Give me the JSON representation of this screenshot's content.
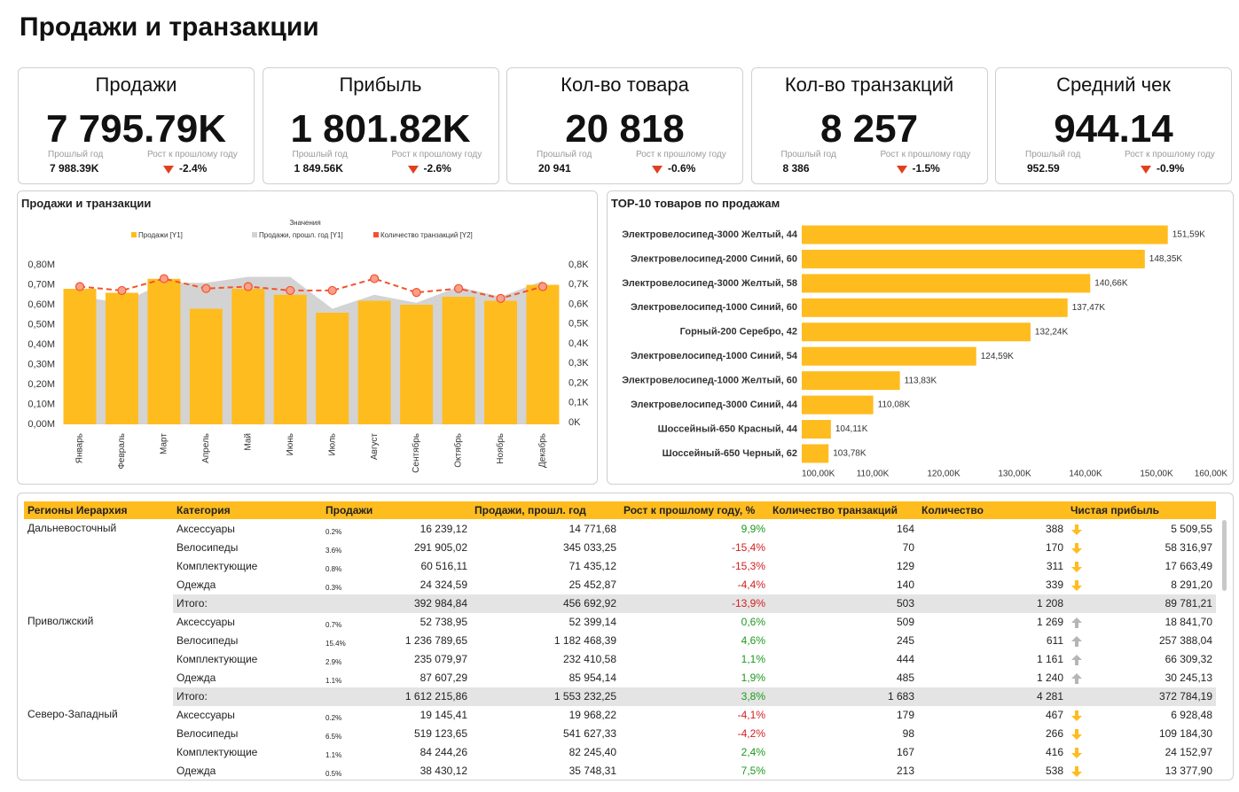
{
  "title": "Продажи и транзакции",
  "kpi_labels": {
    "prev": "Прошлый год",
    "growth": "Рост к прошлому году"
  },
  "kpis": [
    {
      "title": "Продажи",
      "value": "7 795.79K",
      "prev": "7 988.39K",
      "growth": "-2.4%"
    },
    {
      "title": "Прибыль",
      "value": "1 801.82K",
      "prev": "1 849.56K",
      "growth": "-2.6%"
    },
    {
      "title": "Кол-во товара",
      "value": "20 818",
      "prev": "20 941",
      "growth": "-0.6%"
    },
    {
      "title": "Кол-во транзакций",
      "value": "8 257",
      "prev": "8 386",
      "growth": "-1.5%"
    },
    {
      "title": "Средний чек",
      "value": "944.14",
      "prev": "952.59",
      "growth": "-0.9%"
    }
  ],
  "chart_data": [
    {
      "type": "combo",
      "title": "Продажи и транзакции",
      "legend_title": "Значения",
      "categories": [
        "Январь",
        "Февраль",
        "Март",
        "Апрель",
        "Май",
        "Июнь",
        "Июль",
        "Август",
        "Сентябрь",
        "Октябрь",
        "Ноябрь",
        "Декабрь"
      ],
      "series": [
        {
          "name": "Продажи [Y1]",
          "type": "bar",
          "color": "#FFBC1F",
          "values": [
            0.68,
            0.66,
            0.73,
            0.58,
            0.68,
            0.65,
            0.56,
            0.62,
            0.6,
            0.64,
            0.62,
            0.7
          ]
        },
        {
          "name": "Продажи, прошл. год [Y1]",
          "type": "area",
          "color": "#D3D3D3",
          "values": [
            0.64,
            0.61,
            0.71,
            0.71,
            0.74,
            0.74,
            0.58,
            0.65,
            0.61,
            0.69,
            0.64,
            0.72
          ]
        },
        {
          "name": "Количество транзакций [Y2]",
          "type": "line",
          "axis": "y2",
          "color": "#F4512C",
          "values": [
            0.69,
            0.67,
            0.73,
            0.68,
            0.69,
            0.67,
            0.67,
            0.73,
            0.66,
            0.68,
            0.63,
            0.69
          ]
        }
      ],
      "ylim": [
        0,
        0.8
      ],
      "yticks": [
        {
          "value": 0,
          "label": "0,00M"
        },
        {
          "value": 0.1,
          "label": "0,10M"
        },
        {
          "value": 0.2,
          "label": "0,20M"
        },
        {
          "value": 0.3,
          "label": "0,30M"
        },
        {
          "value": 0.4,
          "label": "0,40M"
        },
        {
          "value": 0.5,
          "label": "0,50M"
        },
        {
          "value": 0.6,
          "label": "0,60M"
        },
        {
          "value": 0.7,
          "label": "0,70M"
        },
        {
          "value": 0.8,
          "label": "0,80M"
        }
      ],
      "y2lim": [
        0,
        0.8
      ],
      "y2ticks": [
        {
          "value": 0,
          "label": "0K"
        },
        {
          "value": 0.1,
          "label": "0,1K"
        },
        {
          "value": 0.2,
          "label": "0,2K"
        },
        {
          "value": 0.3,
          "label": "0,3K"
        },
        {
          "value": 0.4,
          "label": "0,4K"
        },
        {
          "value": 0.5,
          "label": "0,5K"
        },
        {
          "value": 0.6,
          "label": "0,6K"
        },
        {
          "value": 0.7,
          "label": "0,7K"
        },
        {
          "value": 0.8,
          "label": "0,8K"
        }
      ]
    },
    {
      "type": "hbar",
      "title": "TOP-10 товаров по продажам",
      "color": "#FFBC1F",
      "categories": [
        "Электровелосипед-3000 Желтый, 44",
        "Электровелосипед-2000 Синий, 60",
        "Электровелосипед-3000 Желтый, 58",
        "Электровелосипед-1000 Синий, 60",
        "Горный-200 Серебро, 42",
        "Электровелосипед-1000 Синий, 54",
        "Электровелосипед-1000 Желтый, 60",
        "Электровелосипед-3000 Синий, 44",
        "Шоссейный-650 Красный, 44",
        "Шоссейный-650 Черный, 62"
      ],
      "values": [
        151.59,
        148.35,
        140.66,
        137.47,
        132.24,
        124.59,
        113.83,
        110.08,
        104.11,
        103.78
      ],
      "value_labels": [
        "151,59K",
        "148,35K",
        "140,66K",
        "137,47K",
        "132,24K",
        "124,59K",
        "113,83K",
        "110,08K",
        "104,11K",
        "103,78K"
      ],
      "xlim": [
        100,
        160
      ],
      "xticks": [
        {
          "value": 100,
          "label": "100,00K"
        },
        {
          "value": 110,
          "label": "110,00K"
        },
        {
          "value": 120,
          "label": "120,00K"
        },
        {
          "value": 130,
          "label": "130,00K"
        },
        {
          "value": 140,
          "label": "140,00K"
        },
        {
          "value": 150,
          "label": "150,00K"
        },
        {
          "value": 160,
          "label": "160,00K"
        }
      ]
    }
  ],
  "table": {
    "columns": [
      "Регионы Иерархия",
      "Категория",
      "Продажи",
      "Продажи, прошл. год",
      "Рост к прошлому году, %",
      "Количество транзакций",
      "Количество",
      "Чистая прибыль"
    ],
    "groups": [
      {
        "region": "Дальневосточный",
        "rows": [
          {
            "category": "Аксессуары",
            "share": "0.2%",
            "sales": "16 239,12",
            "prev": "14 771,68",
            "growth": "9,9%",
            "transactions": "164",
            "quantity": "388",
            "trend": "down",
            "profit": "5 509,55"
          },
          {
            "category": "Велосипеды",
            "share": "3.6%",
            "sales": "291 905,02",
            "prev": "345 033,25",
            "growth": "-15,4%",
            "transactions": "70",
            "quantity": "170",
            "trend": "down",
            "profit": "58 316,97"
          },
          {
            "category": "Комплектующие",
            "share": "0.8%",
            "sales": "60 516,11",
            "prev": "71 435,12",
            "growth": "-15,3%",
            "transactions": "129",
            "quantity": "311",
            "trend": "down",
            "profit": "17 663,49"
          },
          {
            "category": "Одежда",
            "share": "0.3%",
            "sales": "24 324,59",
            "prev": "25 452,87",
            "growth": "-4,4%",
            "transactions": "140",
            "quantity": "339",
            "trend": "down",
            "profit": "8 291,20"
          }
        ],
        "total": {
          "label": "Итого:",
          "sales": "392 984,84",
          "prev": "456 692,92",
          "growth": "-13,9%",
          "transactions": "503",
          "quantity": "1 208",
          "profit": "89 781,21"
        }
      },
      {
        "region": "Приволжский",
        "rows": [
          {
            "category": "Аксессуары",
            "share": "0.7%",
            "sales": "52 738,95",
            "prev": "52 399,14",
            "growth": "0,6%",
            "transactions": "509",
            "quantity": "1 269",
            "trend": "up",
            "profit": "18 841,70"
          },
          {
            "category": "Велосипеды",
            "share": "15.4%",
            "sales": "1 236 789,65",
            "prev": "1 182 468,39",
            "growth": "4,6%",
            "transactions": "245",
            "quantity": "611",
            "trend": "up",
            "profit": "257 388,04"
          },
          {
            "category": "Комплектующие",
            "share": "2.9%",
            "sales": "235 079,97",
            "prev": "232 410,58",
            "growth": "1,1%",
            "transactions": "444",
            "quantity": "1 161",
            "trend": "up",
            "profit": "66 309,32"
          },
          {
            "category": "Одежда",
            "share": "1.1%",
            "sales": "87 607,29",
            "prev": "85 954,14",
            "growth": "1,9%",
            "transactions": "485",
            "quantity": "1 240",
            "trend": "up",
            "profit": "30 245,13"
          }
        ],
        "total": {
          "label": "Итого:",
          "sales": "1 612 215,86",
          "prev": "1 553 232,25",
          "growth": "3,8%",
          "transactions": "1 683",
          "quantity": "4 281",
          "profit": "372 784,19"
        }
      },
      {
        "region": "Северо-Западный",
        "rows": [
          {
            "category": "Аксессуары",
            "share": "0.2%",
            "sales": "19 145,41",
            "prev": "19 968,22",
            "growth": "-4,1%",
            "transactions": "179",
            "quantity": "467",
            "trend": "down",
            "profit": "6 928,48"
          },
          {
            "category": "Велосипеды",
            "share": "6.5%",
            "sales": "519 123,65",
            "prev": "541 627,33",
            "growth": "-4,2%",
            "transactions": "98",
            "quantity": "266",
            "trend": "down",
            "profit": "109 184,30"
          },
          {
            "category": "Комплектующие",
            "share": "1.1%",
            "sales": "84 244,26",
            "prev": "82 245,40",
            "growth": "2,4%",
            "transactions": "167",
            "quantity": "416",
            "trend": "down",
            "profit": "24 152,97"
          },
          {
            "category": "Одежда",
            "share": "0.5%",
            "sales": "38 430,12",
            "prev": "35 748,31",
            "growth": "7,5%",
            "transactions": "213",
            "quantity": "538",
            "trend": "down",
            "profit": "13 377,90"
          }
        ]
      }
    ]
  }
}
